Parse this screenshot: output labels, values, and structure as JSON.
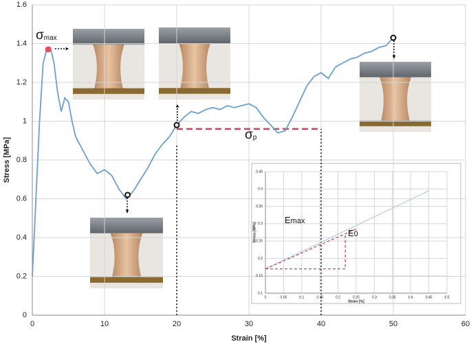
{
  "chart_data": [
    {
      "type": "line",
      "x_label": "Strain [%]",
      "y_label": "Stress [MPa]",
      "xlim": [
        0,
        60
      ],
      "xticks": [
        0,
        10,
        20,
        30,
        40,
        50,
        60
      ],
      "ylim": [
        0,
        1.6
      ],
      "yticks": [
        0,
        0.2,
        0.4,
        0.6,
        0.8,
        1,
        1.2,
        1.4,
        1.6
      ],
      "grid": true,
      "series": [
        {
          "color": "#6a9fd0",
          "x": [
            0,
            0.5,
            1,
            1.5,
            2,
            2.5,
            3,
            3.5,
            4,
            4.5,
            5,
            5.5,
            6,
            7,
            8,
            9,
            10,
            11,
            12,
            13,
            14,
            15,
            16,
            17,
            18,
            19,
            20,
            21,
            22,
            23,
            24,
            25,
            26,
            27,
            28,
            29,
            30,
            31,
            32,
            33,
            34,
            35,
            36,
            37,
            38,
            39,
            40,
            41,
            42,
            43,
            44,
            45,
            46,
            47,
            48,
            49,
            50
          ],
          "values": [
            0.2,
            0.6,
            1.0,
            1.3,
            1.37,
            1.38,
            1.3,
            1.15,
            1.05,
            1.12,
            1.1,
            1.0,
            0.92,
            0.85,
            0.78,
            0.73,
            0.75,
            0.72,
            0.65,
            0.6,
            0.64,
            0.7,
            0.76,
            0.83,
            0.88,
            0.92,
            0.98,
            1.02,
            1.05,
            1.04,
            1.06,
            1.07,
            1.06,
            1.08,
            1.07,
            1.08,
            1.09,
            1.07,
            1.02,
            0.98,
            0.94,
            0.95,
            1.02,
            1.1,
            1.18,
            1.23,
            1.25,
            1.22,
            1.28,
            1.3,
            1.32,
            1.33,
            1.35,
            1.36,
            1.38,
            1.39,
            1.43
          ]
        }
      ],
      "highlight": {
        "x": [
          2.2,
          13.2,
          20,
          50
        ],
        "y": [
          1.37,
          0.62,
          0.98,
          1.43
        ],
        "colors": [
          "#e8505b",
          "#ffffff",
          "#ffffff",
          "#ffffff"
        ]
      },
      "reference_x": [
        20,
        40
      ],
      "sigma_p": {
        "y": 0.96,
        "x": [
          20,
          40
        ],
        "color": "#c94a5a"
      },
      "annotations": [
        {
          "text": "σ",
          "sub": "max"
        },
        {
          "text": "σ",
          "sub": "p"
        }
      ]
    },
    {
      "type": "line",
      "x_label": "Strain [%]",
      "y_label": "Stress [MPa]",
      "xlim": [
        0,
        0.5
      ],
      "xticks": [
        0,
        0.05,
        0.1,
        0.15,
        0.2,
        0.25,
        0.3,
        0.35,
        0.4,
        0.45,
        0.5
      ],
      "ylim": [
        0.1,
        0.45
      ],
      "yticks": [
        0.1,
        0.15,
        0.2,
        0.25,
        0.3,
        0.35,
        0.4,
        0.45
      ],
      "grid": true,
      "series": [
        {
          "color": "#a9c4e0",
          "x": [
            0,
            0.45
          ],
          "values": [
            0.17,
            0.395
          ]
        }
      ],
      "tangent": {
        "x": [
          0,
          0.25
        ],
        "y": [
          0.17,
          0.285
        ],
        "color": "#c94a5a"
      },
      "initial": {
        "x": [
          0,
          0.22,
          0.22
        ],
        "y": [
          0.17,
          0.17,
          0.27
        ],
        "color": "#c94a5a"
      },
      "annotations": [
        {
          "text": "E",
          "sub": "max"
        },
        {
          "text": "E",
          "sub": "0"
        }
      ]
    }
  ]
}
